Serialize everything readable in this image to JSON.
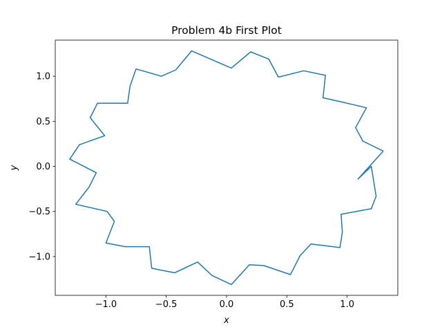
{
  "chart_data": {
    "type": "line",
    "title": "Problem 4b First Plot",
    "xlabel": "x",
    "ylabel": "y",
    "xlim": [
      -1.42,
      1.42
    ],
    "ylim": [
      -1.43,
      1.4
    ],
    "xticks": [
      -1.0,
      -0.5,
      0.0,
      0.5,
      1.0
    ],
    "xtick_labels": [
      "−1.0",
      "−0.5",
      "0.0",
      "0.5",
      "1.0"
    ],
    "yticks": [
      -1.0,
      -0.5,
      0.0,
      0.5,
      1.0
    ],
    "ytick_labels": [
      "−1.0",
      "−0.5",
      "0.0",
      "0.5",
      "1.0"
    ],
    "grid": false,
    "line_color": "#1f77b4",
    "series": [
      {
        "x": [
          1.3,
          1.13,
          1.07,
          1.16,
          0.97,
          0.8,
          0.82,
          0.64,
          0.43,
          0.35,
          0.2,
          0.04,
          -0.29,
          -0.42,
          -0.54,
          -0.75,
          -0.8,
          -0.82,
          -1.07,
          -1.13,
          -1.01,
          -1.22,
          -1.3,
          -1.08,
          -1.14,
          -1.25,
          -0.99,
          -0.93,
          -1.0,
          -0.84,
          -0.64,
          -0.62,
          -0.43,
          -0.24,
          -0.12,
          0.04,
          0.19,
          0.31,
          0.53,
          0.61,
          0.7,
          0.94,
          0.96,
          0.95,
          1.2,
          1.24,
          1.2,
          1.09,
          1.3
        ],
        "y": [
          0.17,
          0.28,
          0.43,
          0.65,
          0.71,
          0.76,
          1.01,
          1.06,
          0.99,
          1.19,
          1.27,
          1.09,
          1.28,
          1.07,
          1.0,
          1.08,
          0.89,
          0.7,
          0.7,
          0.54,
          0.34,
          0.24,
          0.08,
          -0.07,
          -0.23,
          -0.42,
          -0.5,
          -0.61,
          -0.85,
          -0.89,
          -0.89,
          -1.13,
          -1.18,
          -1.06,
          -1.21,
          -1.31,
          -1.09,
          -1.1,
          -1.2,
          -0.99,
          -0.86,
          -0.9,
          -0.73,
          -0.53,
          -0.47,
          -0.33,
          0.0,
          -0.14,
          0.17
        ]
      }
    ]
  }
}
